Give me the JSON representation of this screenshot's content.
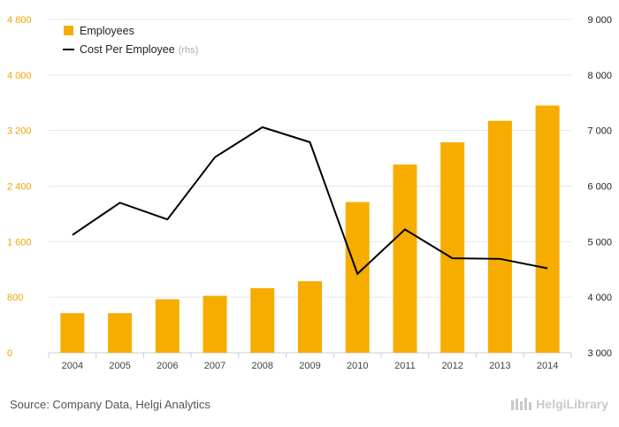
{
  "chart_data": {
    "type": "bar+line",
    "categories": [
      "2004",
      "2005",
      "2006",
      "2007",
      "2008",
      "2009",
      "2010",
      "2011",
      "2012",
      "2013",
      "2014"
    ],
    "series": [
      {
        "name": "Employees",
        "type": "bar",
        "axis": "left",
        "color": "#f7ac00",
        "values": [
          570,
          570,
          770,
          820,
          930,
          1030,
          2170,
          2710,
          3030,
          3340,
          3560
        ]
      },
      {
        "name": "Cost Per Employee",
        "legend_suffix": "(rhs)",
        "type": "line",
        "axis": "right",
        "color": "#000000",
        "values": [
          5120,
          5700,
          5400,
          6520,
          7060,
          6790,
          4420,
          5220,
          4700,
          4690,
          4520
        ]
      }
    ],
    "y_left": {
      "min": 0,
      "max": 4800,
      "ticks": [
        "0",
        "800",
        "1 600",
        "2 400",
        "3 200",
        "4 000",
        "4 800"
      ],
      "tick_values": [
        0,
        800,
        1600,
        2400,
        3200,
        4000,
        4800
      ]
    },
    "y_right": {
      "min": 3000,
      "max": 9000,
      "ticks": [
        "3 000",
        "4 000",
        "5 000",
        "6 000",
        "7 000",
        "8 000",
        "9 000"
      ],
      "tick_values": [
        3000,
        4000,
        5000,
        6000,
        7000,
        8000,
        9000
      ]
    },
    "grid": true,
    "legend_position": "top-left"
  },
  "footer": {
    "source": "Source: Company Data, Helgi Analytics",
    "logo_text": "HelgiLibrary"
  }
}
